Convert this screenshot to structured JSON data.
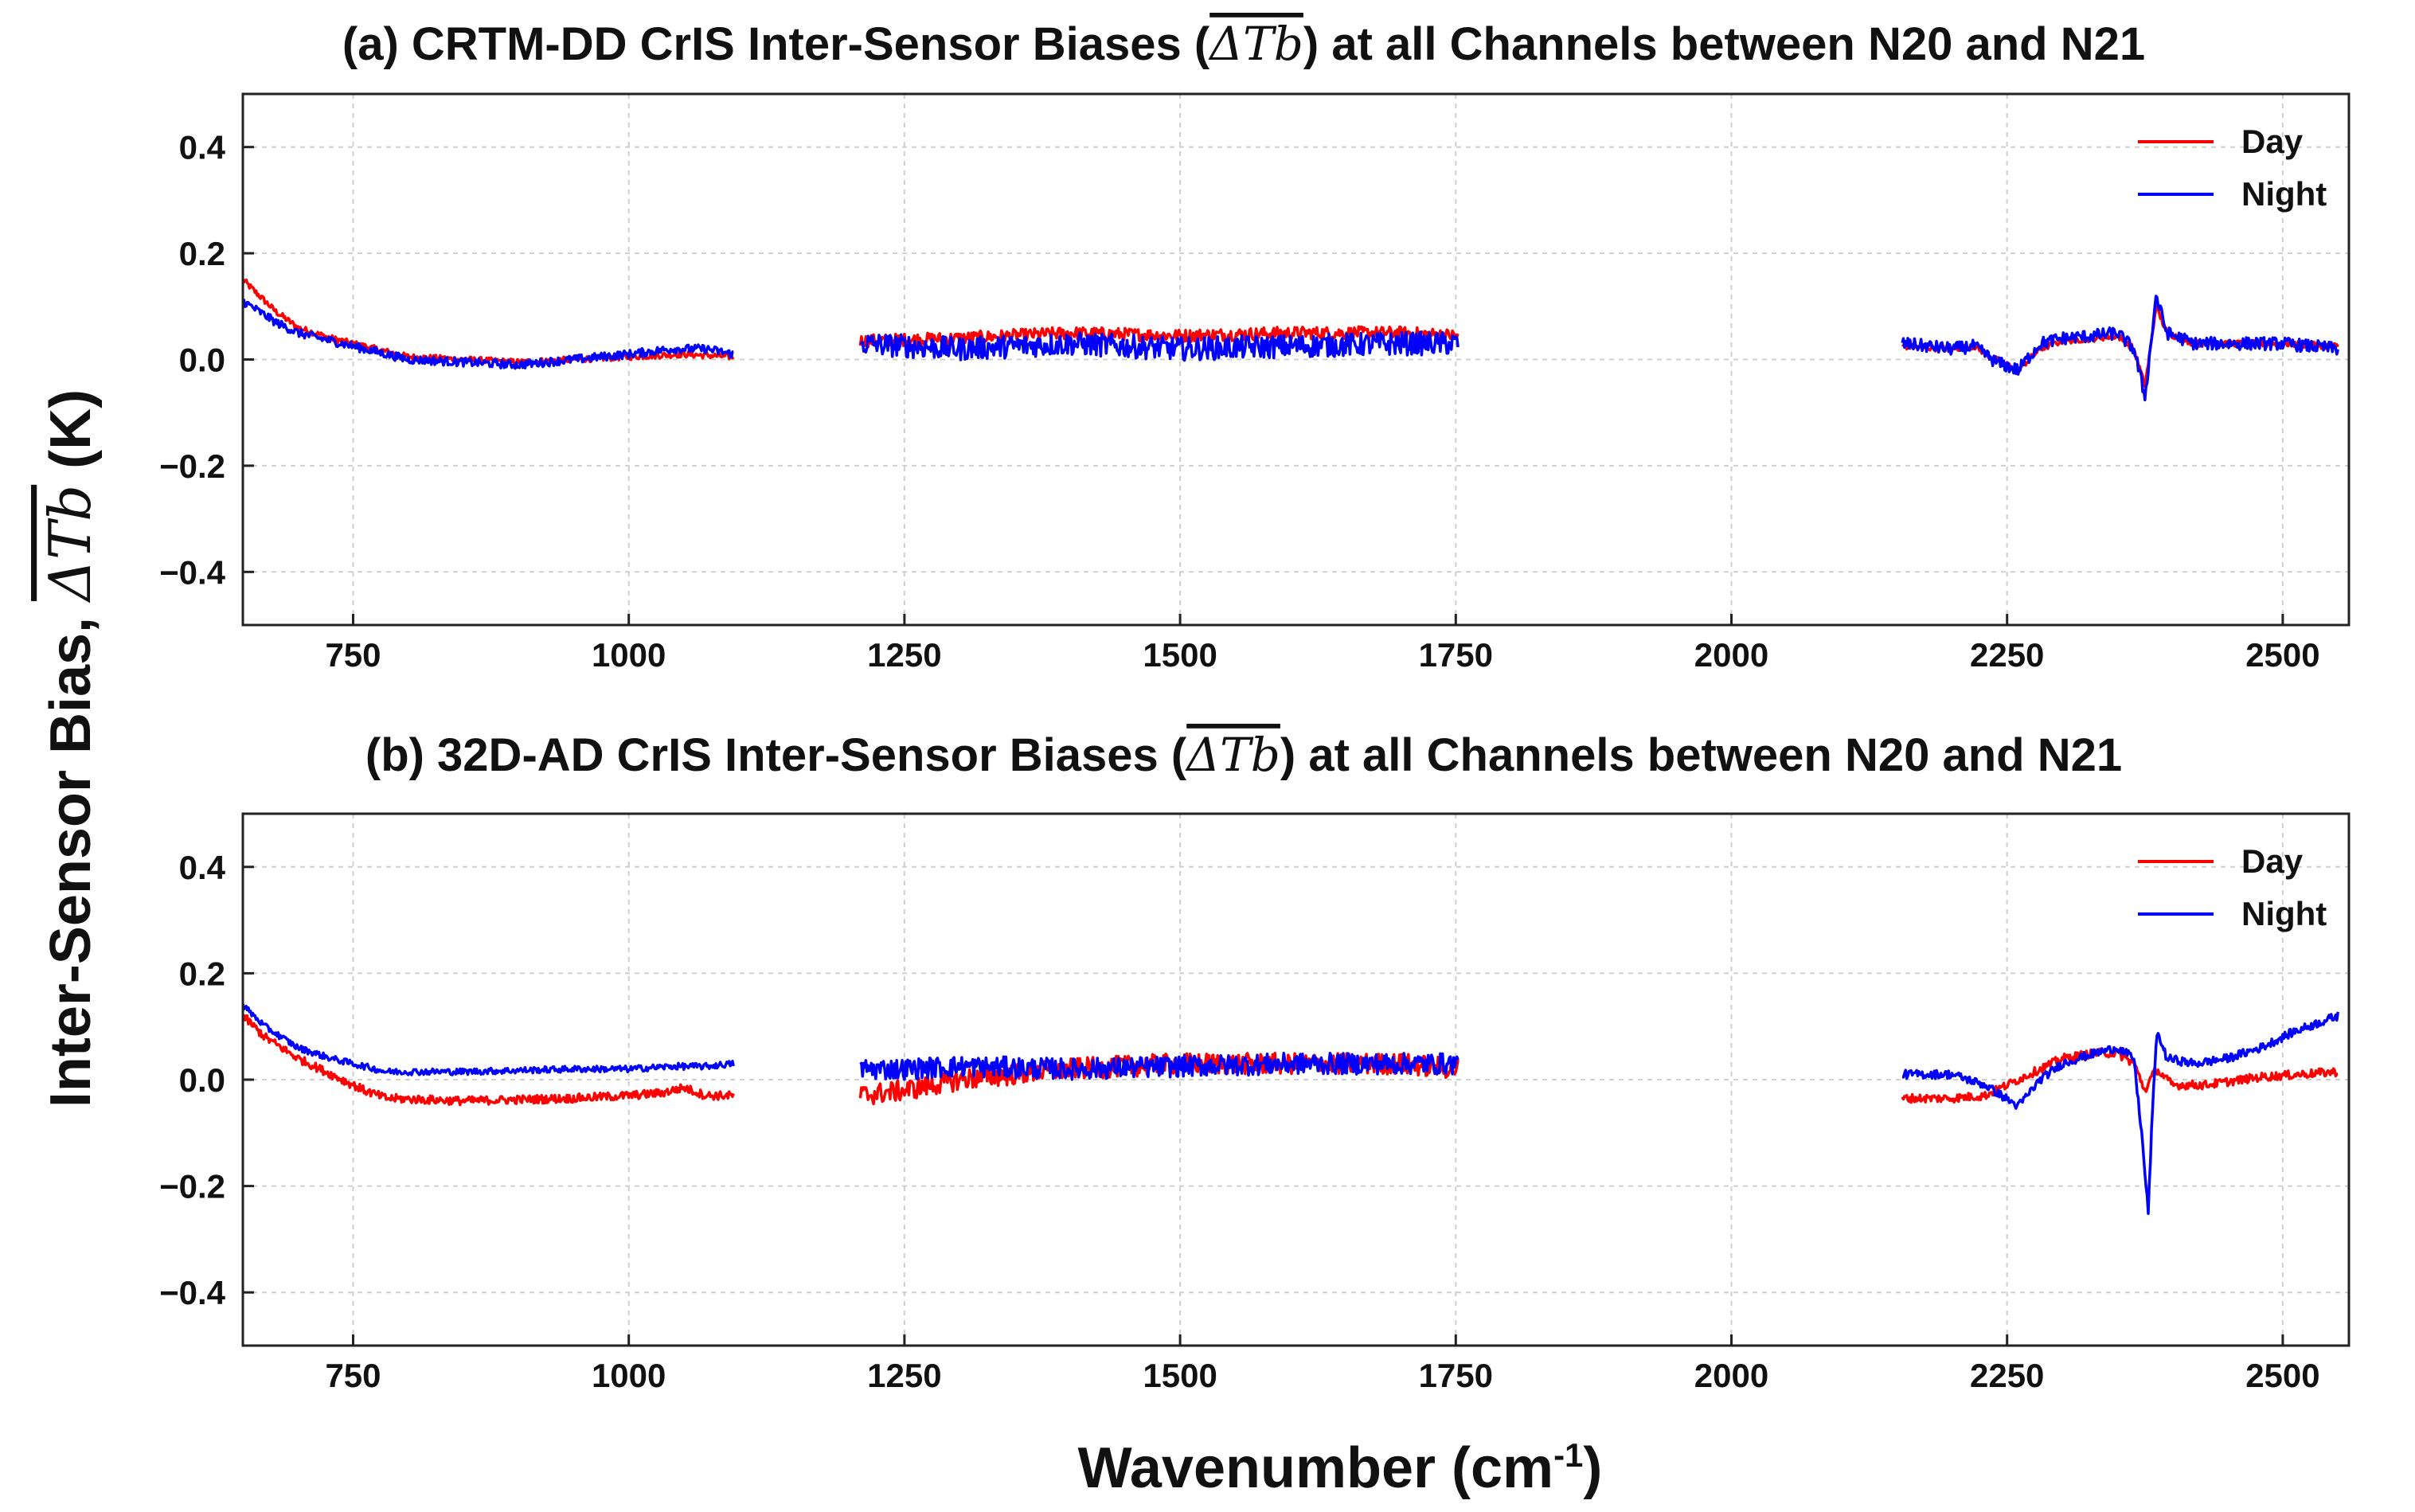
{
  "figure": {
    "ylabel_main": "Inter-Sensor Bias, ",
    "ylabel_math": "ΔTb",
    "ylabel_unit": " (K)",
    "xlabel_main": "Wavenumber (cm",
    "xlabel_sup": "-1",
    "xlabel_close": ")"
  },
  "colors": {
    "day": "#ff0000",
    "night": "#0000ff"
  },
  "chart_data": [
    {
      "type": "line",
      "title_pre": "(a) CRTM-DD CrIS Inter-Sensor Biases (",
      "title_math": "ΔTb",
      "title_post": ") at all Channels between N20 and N21",
      "xlabel": "Wavenumber (cm-1)",
      "ylabel": "Inter-Sensor Bias, ΔTb (K)",
      "xlim": [
        650,
        2560
      ],
      "ylim": [
        -0.5,
        0.5
      ],
      "xticks": [
        750,
        1000,
        1250,
        1500,
        1750,
        2000,
        2250,
        2500
      ],
      "xtick_labels": [
        "750",
        "1000",
        "1250",
        "1500",
        "1750",
        "2000",
        "2250",
        "2500"
      ],
      "yticks": [
        0.4,
        0.2,
        0.0,
        -0.2,
        -0.4
      ],
      "ytick_labels": [
        "0.4",
        "0.2",
        "0.0",
        "−0.2",
        "−0.4"
      ],
      "legend": [
        "Day",
        "Night"
      ],
      "legend_position": "top-right",
      "bands": [
        {
          "range": [
            650,
            1095
          ],
          "day": [
            [
              650,
              0.15
            ],
            [
              665,
              0.12
            ],
            [
              680,
              0.09
            ],
            [
              700,
              0.06
            ],
            [
              730,
              0.04
            ],
            [
              760,
              0.025
            ],
            [
              800,
              0.005
            ],
            [
              850,
              0.0
            ],
            [
              900,
              -0.005
            ],
            [
              950,
              0.0
            ],
            [
              1000,
              0.005
            ],
            [
              1050,
              0.01
            ],
            [
              1095,
              0.005
            ]
          ],
          "night": [
            [
              650,
              0.11
            ],
            [
              665,
              0.09
            ],
            [
              680,
              0.07
            ],
            [
              700,
              0.05
            ],
            [
              730,
              0.035
            ],
            [
              760,
              0.02
            ],
            [
              800,
              0.0
            ],
            [
              850,
              -0.005
            ],
            [
              900,
              -0.01
            ],
            [
              950,
              0.0
            ],
            [
              1000,
              0.01
            ],
            [
              1040,
              0.02
            ],
            [
              1070,
              0.02
            ],
            [
              1095,
              0.01
            ]
          ],
          "day_noise": 0.006,
          "night_noise": 0.008
        },
        {
          "range": [
            1210,
            1752
          ],
          "day": [
            [
              1210,
              0.035
            ],
            [
              1300,
              0.04
            ],
            [
              1400,
              0.05
            ],
            [
              1500,
              0.045
            ],
            [
              1600,
              0.05
            ],
            [
              1700,
              0.05
            ],
            [
              1752,
              0.045
            ]
          ],
          "night": [
            [
              1210,
              0.03
            ],
            [
              1300,
              0.02
            ],
            [
              1400,
              0.03
            ],
            [
              1500,
              0.02
            ],
            [
              1600,
              0.025
            ],
            [
              1700,
              0.03
            ],
            [
              1752,
              0.03
            ]
          ],
          "day_noise": 0.012,
          "night_noise": 0.022
        },
        {
          "range": [
            2155,
            2550
          ],
          "day": [
            [
              2155,
              0.025
            ],
            [
              2200,
              0.02
            ],
            [
              2220,
              0.025
            ],
            [
              2240,
              0.0
            ],
            [
              2260,
              -0.02
            ],
            [
              2280,
              0.02
            ],
            [
              2300,
              0.035
            ],
            [
              2330,
              0.04
            ],
            [
              2350,
              0.045
            ],
            [
              2365,
              0.02
            ],
            [
              2375,
              -0.05
            ],
            [
              2380,
              0.02
            ],
            [
              2385,
              0.1
            ],
            [
              2395,
              0.05
            ],
            [
              2420,
              0.03
            ],
            [
              2500,
              0.03
            ],
            [
              2550,
              0.025
            ]
          ],
          "night": [
            [
              2155,
              0.03
            ],
            [
              2200,
              0.02
            ],
            [
              2220,
              0.025
            ],
            [
              2240,
              -0.005
            ],
            [
              2260,
              -0.02
            ],
            [
              2280,
              0.03
            ],
            [
              2300,
              0.04
            ],
            [
              2330,
              0.045
            ],
            [
              2350,
              0.05
            ],
            [
              2365,
              0.02
            ],
            [
              2375,
              -0.07
            ],
            [
              2380,
              0.02
            ],
            [
              2385,
              0.12
            ],
            [
              2395,
              0.05
            ],
            [
              2420,
              0.03
            ],
            [
              2500,
              0.03
            ],
            [
              2550,
              0.02
            ]
          ],
          "day_noise": 0.006,
          "night_noise": 0.012
        }
      ]
    },
    {
      "type": "line",
      "title_pre": "(b) 32D-AD CrIS Inter-Sensor Biases (",
      "title_math": "ΔTb",
      "title_post": ") at all Channels between N20 and N21",
      "xlabel": "Wavenumber (cm-1)",
      "ylabel": "Inter-Sensor Bias, ΔTb (K)",
      "xlim": [
        650,
        2560
      ],
      "ylim": [
        -0.5,
        0.5
      ],
      "xticks": [
        750,
        1000,
        1250,
        1500,
        1750,
        2000,
        2250,
        2500
      ],
      "xtick_labels": [
        "750",
        "1000",
        "1250",
        "1500",
        "1750",
        "2000",
        "2250",
        "2500"
      ],
      "yticks": [
        0.4,
        0.2,
        0.0,
        -0.2,
        -0.4
      ],
      "ytick_labels": [
        "0.4",
        "0.2",
        "0.0",
        "−0.2",
        "−0.4"
      ],
      "legend": [
        "Day",
        "Night"
      ],
      "legend_position": "top-right",
      "bands": [
        {
          "range": [
            650,
            1095
          ],
          "day": [
            [
              650,
              0.12
            ],
            [
              670,
              0.08
            ],
            [
              700,
              0.04
            ],
            [
              730,
              0.01
            ],
            [
              760,
              -0.02
            ],
            [
              780,
              -0.035
            ],
            [
              850,
              -0.04
            ],
            [
              950,
              -0.035
            ],
            [
              1000,
              -0.03
            ],
            [
              1030,
              -0.025
            ],
            [
              1050,
              -0.015
            ],
            [
              1070,
              -0.03
            ],
            [
              1095,
              -0.03
            ]
          ],
          "night": [
            [
              650,
              0.14
            ],
            [
              670,
              0.1
            ],
            [
              700,
              0.06
            ],
            [
              730,
              0.04
            ],
            [
              760,
              0.025
            ],
            [
              780,
              0.015
            ],
            [
              850,
              0.015
            ],
            [
              950,
              0.02
            ],
            [
              1000,
              0.02
            ],
            [
              1040,
              0.025
            ],
            [
              1070,
              0.025
            ],
            [
              1095,
              0.03
            ]
          ],
          "day_noise": 0.008,
          "night_noise": 0.006
        },
        {
          "range": [
            1210,
            1752
          ],
          "day": [
            [
              1210,
              -0.03
            ],
            [
              1250,
              -0.02
            ],
            [
              1300,
              0.0
            ],
            [
              1400,
              0.02
            ],
            [
              1500,
              0.03
            ],
            [
              1600,
              0.03
            ],
            [
              1700,
              0.03
            ],
            [
              1752,
              0.02
            ]
          ],
          "night": [
            [
              1210,
              0.02
            ],
            [
              1250,
              0.02
            ],
            [
              1300,
              0.025
            ],
            [
              1400,
              0.02
            ],
            [
              1500,
              0.025
            ],
            [
              1600,
              0.03
            ],
            [
              1700,
              0.03
            ],
            [
              1752,
              0.03
            ]
          ],
          "day_noise": 0.02,
          "night_noise": 0.02
        },
        {
          "range": [
            2155,
            2550
          ],
          "day": [
            [
              2155,
              -0.035
            ],
            [
              2200,
              -0.035
            ],
            [
              2230,
              -0.03
            ],
            [
              2260,
              0.0
            ],
            [
              2280,
              0.02
            ],
            [
              2300,
              0.04
            ],
            [
              2330,
              0.05
            ],
            [
              2350,
              0.05
            ],
            [
              2365,
              0.03
            ],
            [
              2375,
              -0.02
            ],
            [
              2380,
              0.0
            ],
            [
              2385,
              0.02
            ],
            [
              2400,
              -0.01
            ],
            [
              2430,
              -0.01
            ],
            [
              2480,
              0.005
            ],
            [
              2550,
              0.015
            ]
          ],
          "night": [
            [
              2155,
              0.01
            ],
            [
              2200,
              0.01
            ],
            [
              2230,
              -0.01
            ],
            [
              2260,
              -0.05
            ],
            [
              2280,
              0.0
            ],
            [
              2300,
              0.03
            ],
            [
              2330,
              0.05
            ],
            [
              2350,
              0.06
            ],
            [
              2365,
              0.04
            ],
            [
              2372,
              -0.1
            ],
            [
              2378,
              -0.25
            ],
            [
              2382,
              -0.05
            ],
            [
              2386,
              0.09
            ],
            [
              2395,
              0.04
            ],
            [
              2420,
              0.03
            ],
            [
              2450,
              0.04
            ],
            [
              2480,
              0.06
            ],
            [
              2510,
              0.09
            ],
            [
              2550,
              0.12
            ]
          ],
          "day_noise": 0.008,
          "night_noise": 0.008
        }
      ]
    }
  ]
}
